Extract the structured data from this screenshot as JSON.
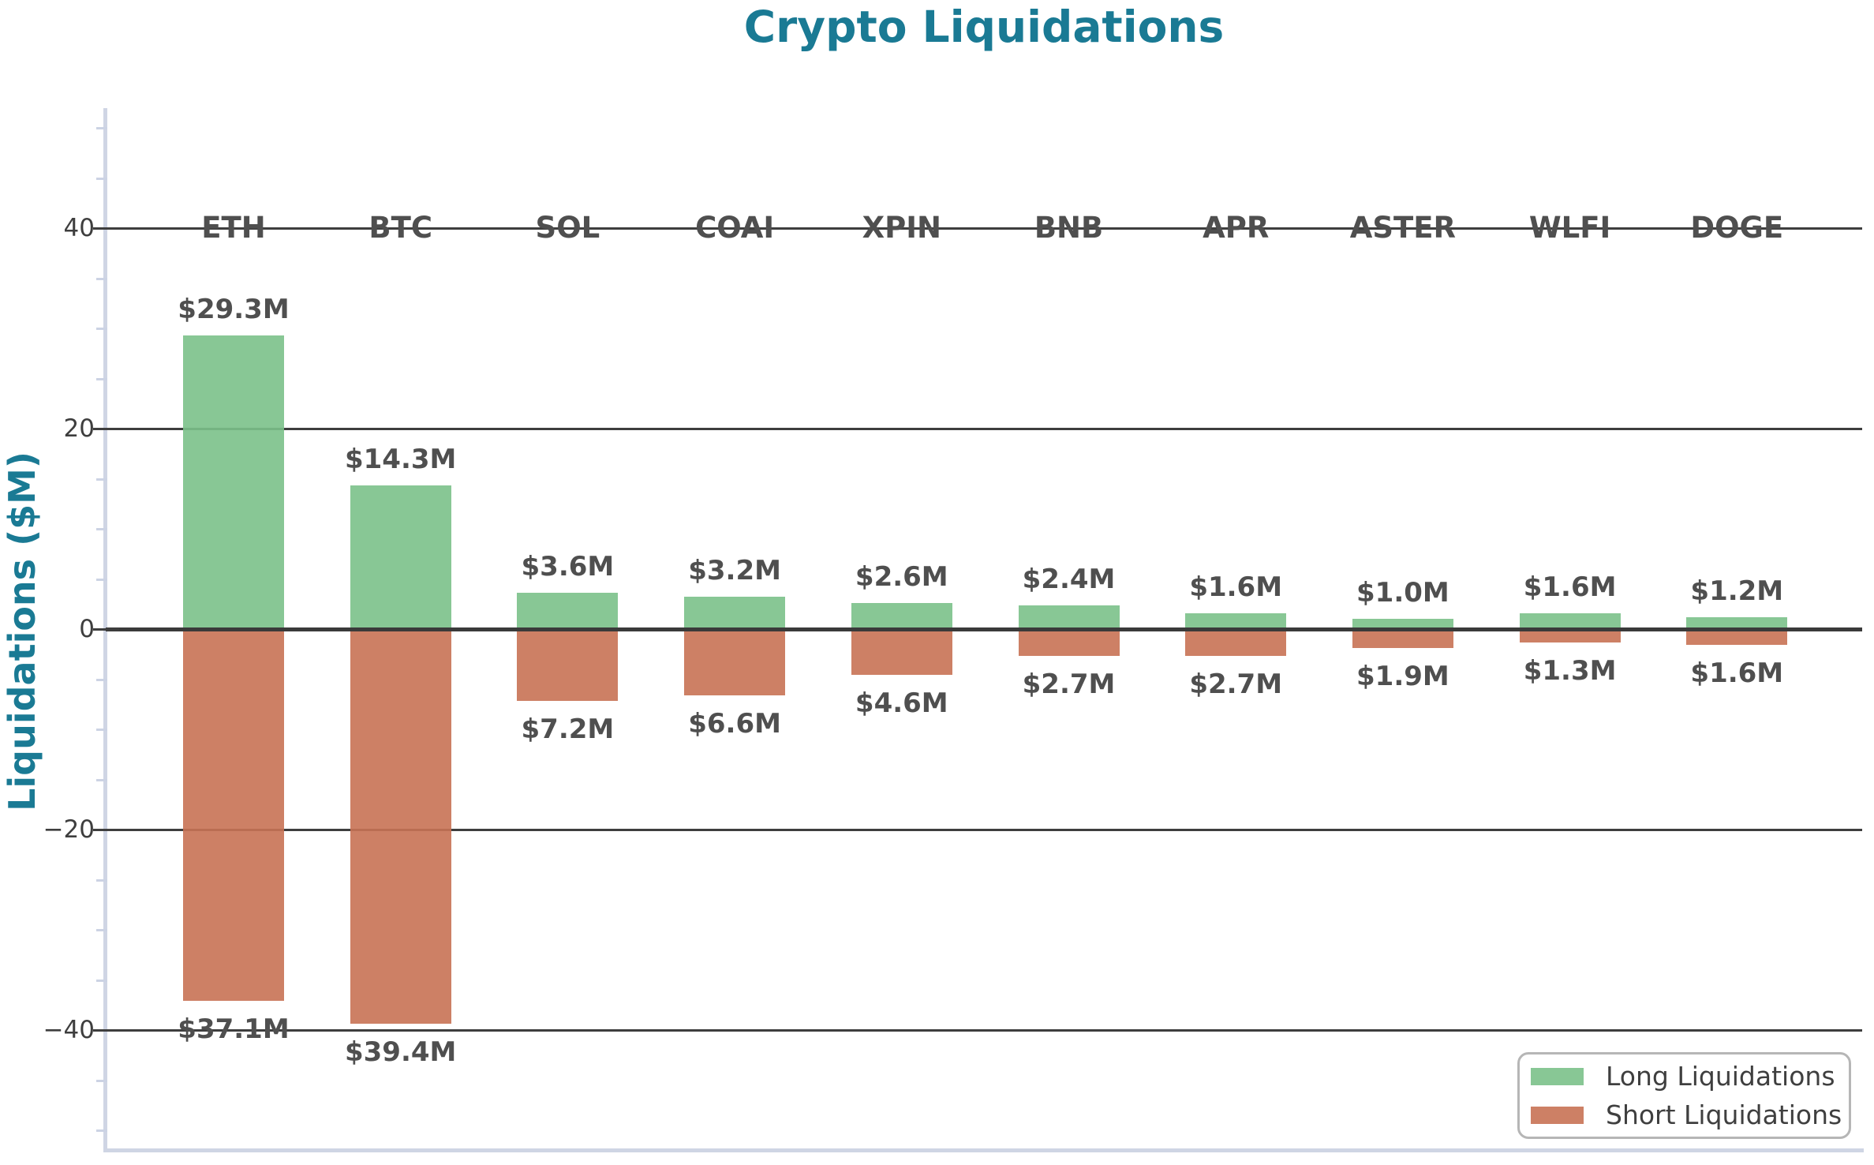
{
  "chart_data": {
    "type": "bar",
    "title": "Crypto Liquidations",
    "ylabel": "Liquidations ($M)",
    "categories": [
      "ETH",
      "BTC",
      "SOL",
      "COAI",
      "XPIN",
      "BNB",
      "APR",
      "ASTER",
      "WLFI",
      "DOGE"
    ],
    "series": [
      {
        "name": "Long Liquidations",
        "direction": "up",
        "color": "#7bc189",
        "values": [
          29.3,
          14.3,
          3.6,
          3.2,
          2.6,
          2.4,
          1.6,
          1.0,
          1.6,
          1.2
        ],
        "labels": [
          "$29.3M",
          "$14.3M",
          "$3.6M",
          "$3.2M",
          "$2.6M",
          "$2.4M",
          "$1.6M",
          "$1.0M",
          "$1.6M",
          "$1.2M"
        ]
      },
      {
        "name": "Short Liquidations",
        "direction": "down",
        "color": "#c87254",
        "values": [
          37.1,
          39.4,
          7.2,
          6.6,
          4.6,
          2.7,
          2.7,
          1.9,
          1.3,
          1.6
        ],
        "labels": [
          "$37.1M",
          "$39.4M",
          "$7.2M",
          "$6.6M",
          "$4.6M",
          "$2.7M",
          "$2.7M",
          "$1.9M",
          "$1.3M",
          "$1.6M"
        ]
      }
    ],
    "bar_alpha": 0.9,
    "yaxis": {
      "ticks": [
        {
          "value": 40,
          "label": "40"
        },
        {
          "value": 20,
          "label": "20"
        },
        {
          "value": 0,
          "label": "0"
        },
        {
          "value": -20,
          "label": "−20"
        },
        {
          "value": -40,
          "label": "−40"
        }
      ],
      "minor_tick_values": [
        50,
        45,
        35,
        30,
        25,
        15,
        10,
        5,
        -5,
        -10,
        -15,
        -25,
        -30,
        -35,
        -45,
        -50
      ],
      "ylim": [
        -52,
        52
      ]
    },
    "grid": true,
    "legend": {
      "position": "lower right",
      "entries": [
        "Long Liquidations",
        "Short Liquidations"
      ]
    },
    "colors": {
      "title": "#1a7a94",
      "grid": "#3e3e3e",
      "zero_line": "#3a3a3a",
      "spine": "#cfd5e4",
      "minor_tick": "#ccd3e4",
      "tick_label": "#3e3e3e",
      "category_label": "#4f4f4f",
      "value_label": "#4f4f4f",
      "legend_border": "#b6b6b6",
      "legend_text": "#3f3f3f",
      "background": "#ffffff"
    }
  }
}
